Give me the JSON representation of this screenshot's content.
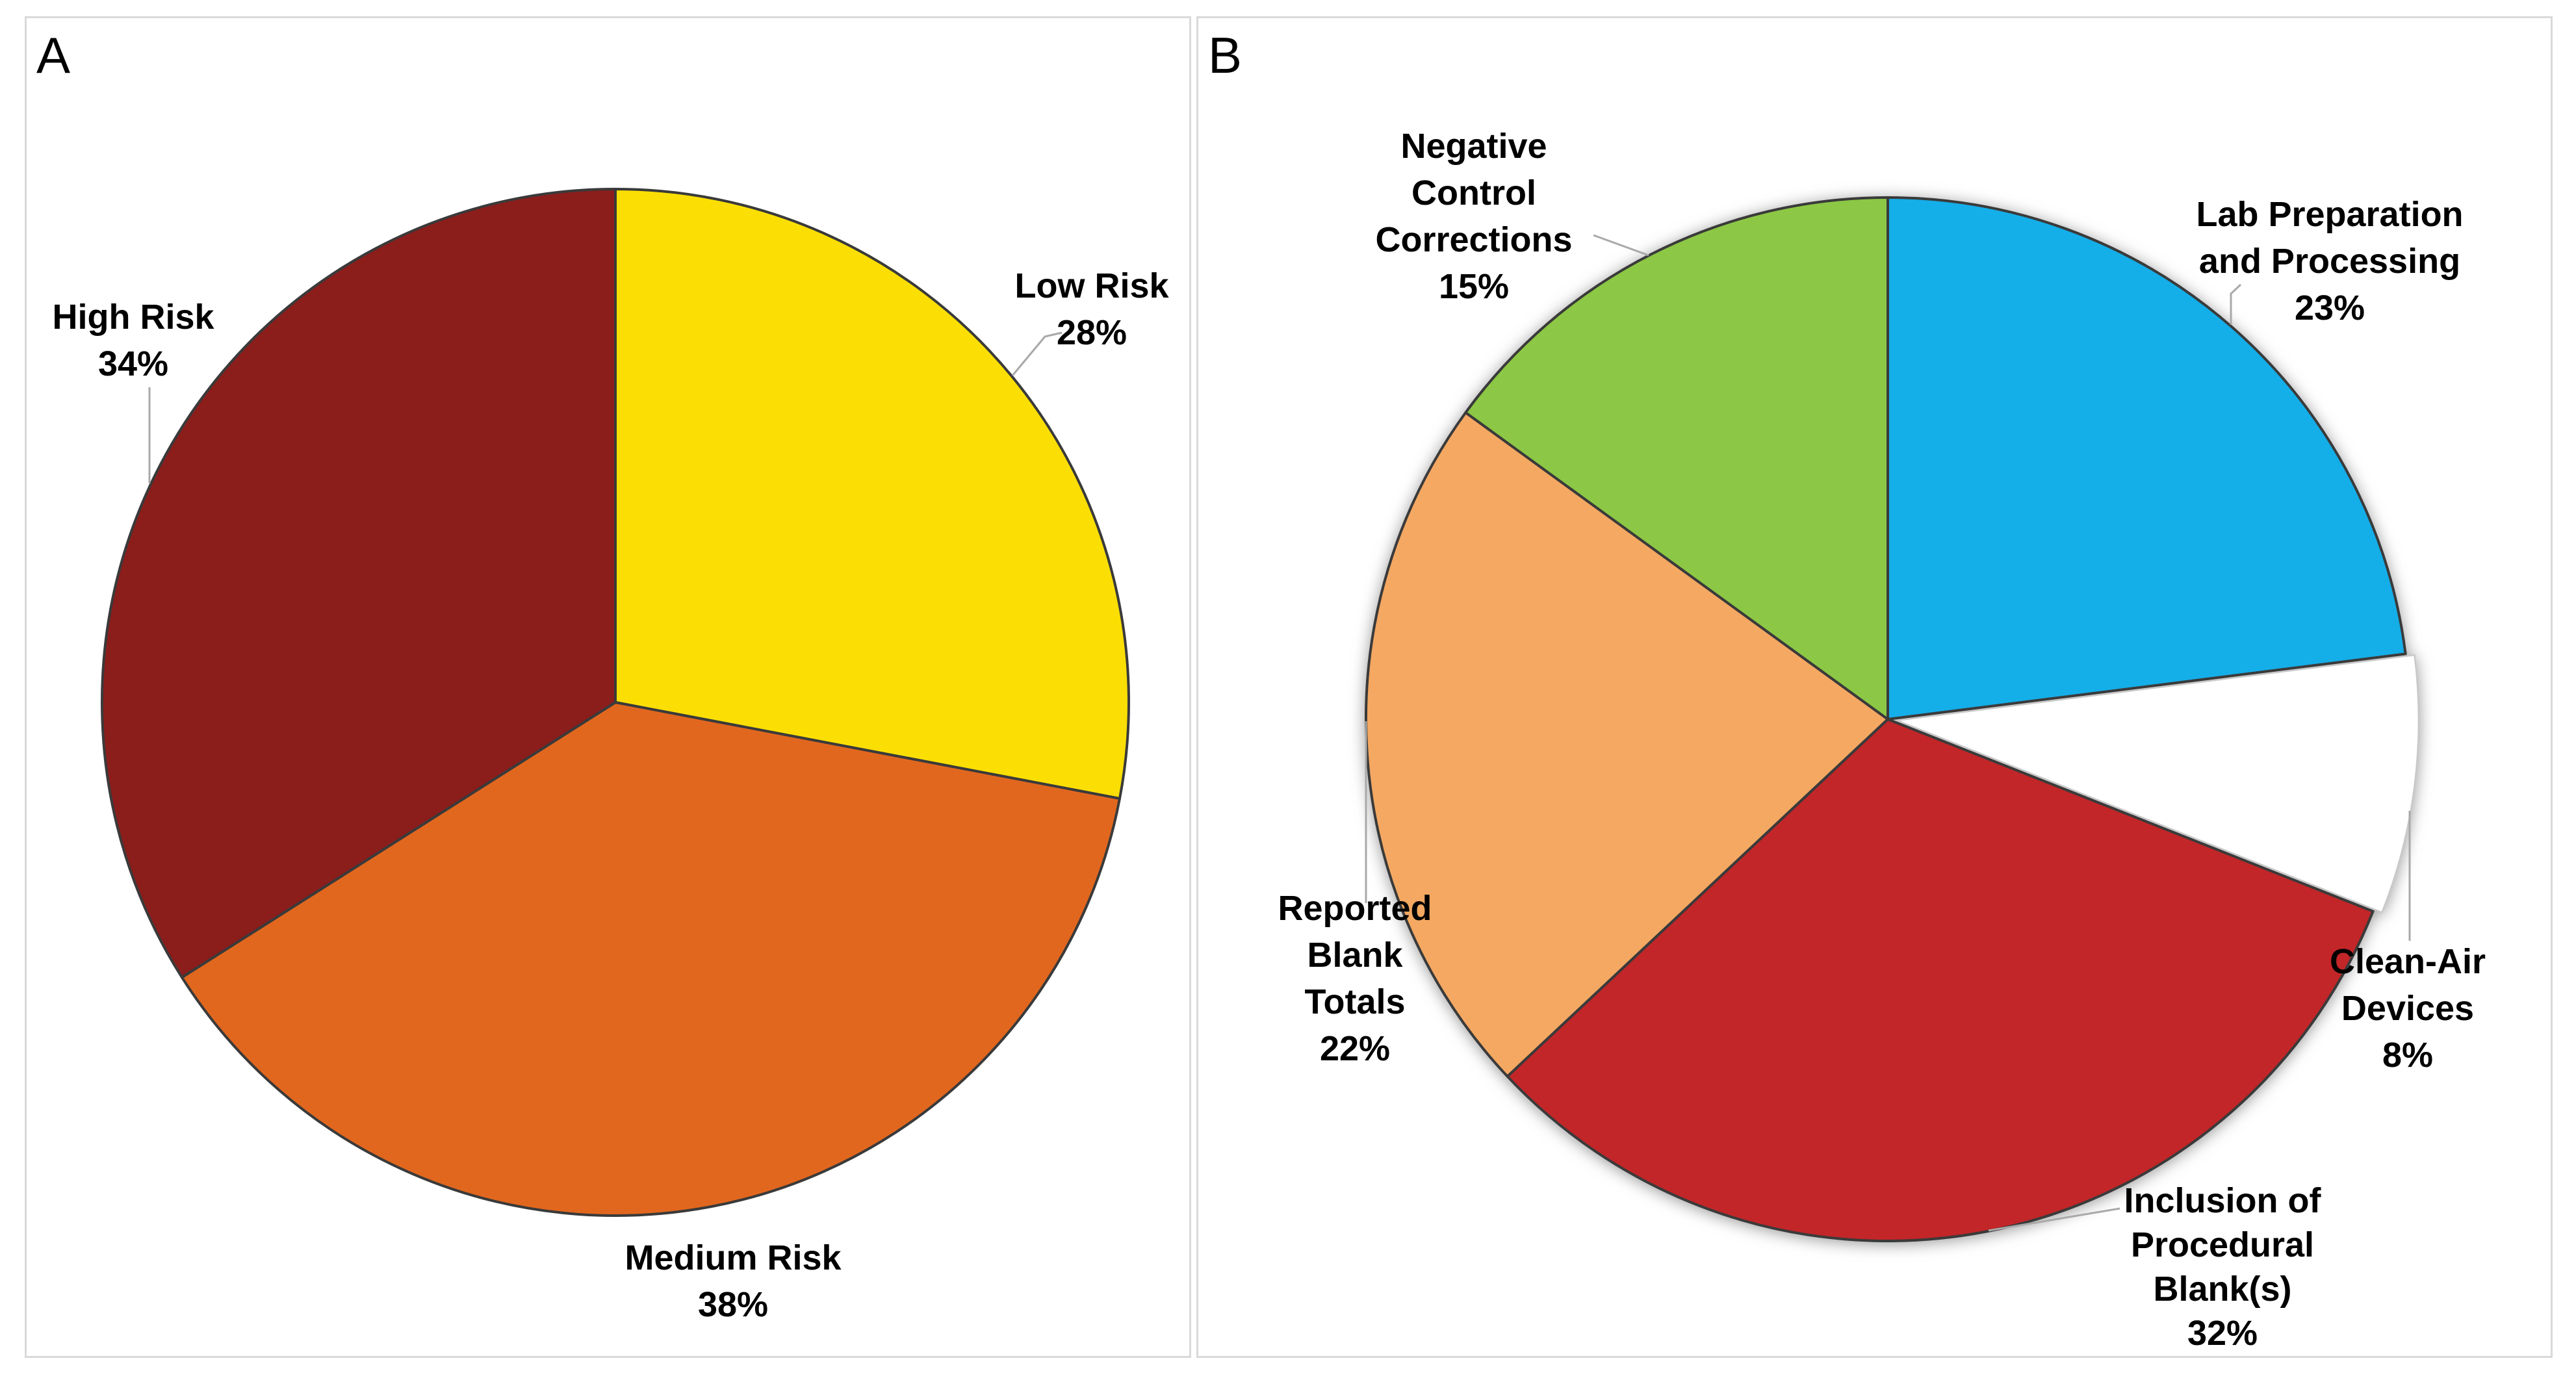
{
  "panels": [
    {
      "tag": "A"
    },
    {
      "tag": "B"
    }
  ],
  "chart_data": [
    {
      "type": "pie",
      "panel": "A",
      "unit": "%",
      "direction": "clockwise",
      "start_angle_deg": 0,
      "stroke_color": "#3A3A3A",
      "slices": [
        {
          "label": "Low Risk",
          "label_lines": [
            "Low Risk"
          ],
          "value": 28,
          "value_label": "28%",
          "color": "#FBDF04"
        },
        {
          "label": "Medium Risk",
          "label_lines": [
            "Medium Risk"
          ],
          "value": 38,
          "value_label": "38%",
          "color": "#E2671E"
        },
        {
          "label": "High Risk",
          "label_lines": [
            "High Risk"
          ],
          "value": 34,
          "value_label": "34%",
          "color": "#8B1D1B"
        }
      ]
    },
    {
      "type": "pie",
      "panel": "B",
      "unit": "%",
      "direction": "clockwise",
      "start_angle_deg": 0,
      "stroke_color": "#3A3A3A",
      "slices": [
        {
          "label": "Lab Preparation and Processing",
          "label_lines": [
            "Lab Preparation",
            "and Processing"
          ],
          "value": 23,
          "value_label": "23%",
          "color": "#14AEE9"
        },
        {
          "label": "Clean-Air Devices",
          "label_lines": [
            "Clean-Air",
            "Devices"
          ],
          "value": 8,
          "value_label": "8%",
          "color": "#FFFFFF",
          "exploded": true,
          "gap_shadow_color": "#D3D3D4"
        },
        {
          "label": "Inclusion of Procedural Blank(s)",
          "label_lines": [
            "Inclusion of",
            "Procedural",
            "Blank(s)"
          ],
          "value": 32,
          "value_label": "32%",
          "color": "#C22628"
        },
        {
          "label": "Reported Blank Totals",
          "label_lines": [
            "Reported",
            "Blank",
            "Totals"
          ],
          "value": 22,
          "value_label": "22%",
          "color": "#F4A862"
        },
        {
          "label": "Negative Control Corrections",
          "label_lines": [
            "Negative",
            "Control",
            "Corrections"
          ],
          "value": 15,
          "value_label": "15%",
          "color": "#8CC845"
        }
      ]
    }
  ]
}
